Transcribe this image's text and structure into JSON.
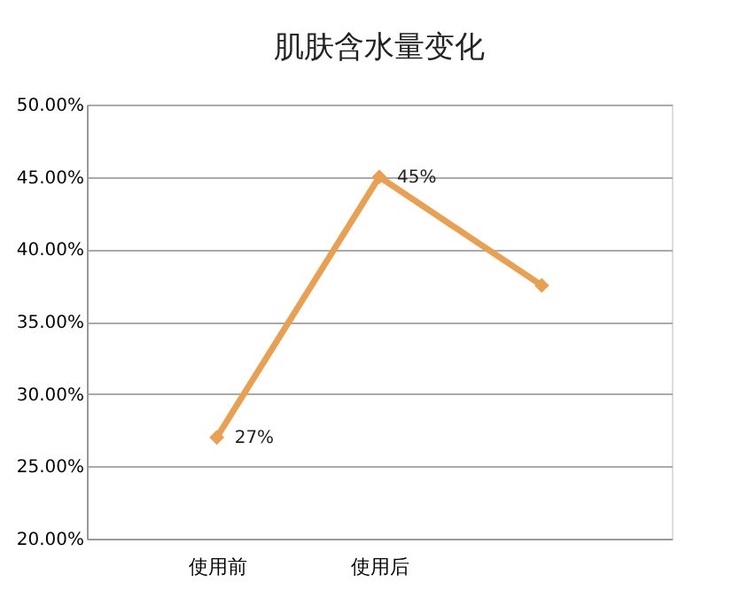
{
  "chart_data": {
    "type": "line",
    "title": "肌肤含水量变化",
    "categories": [
      "使用前",
      "使用后",
      null
    ],
    "series": [
      {
        "color": "#e9a050",
        "values": [
          27,
          45,
          37.5
        ],
        "value_labels": [
          "27%",
          "45%",
          null
        ]
      }
    ],
    "ylim": [
      20,
      50
    ],
    "yticks": [
      {
        "value": 20,
        "label": "20.00%"
      },
      {
        "value": 25,
        "label": "25.00%"
      },
      {
        "value": 30,
        "label": "30.00%"
      },
      {
        "value": 35,
        "label": "35.00%"
      },
      {
        "value": 40,
        "label": "40.00%"
      },
      {
        "value": 45,
        "label": "45.00%"
      },
      {
        "value": 50,
        "label": "50.00%"
      }
    ],
    "grid": "y",
    "marker": "diamond",
    "legend": false
  }
}
